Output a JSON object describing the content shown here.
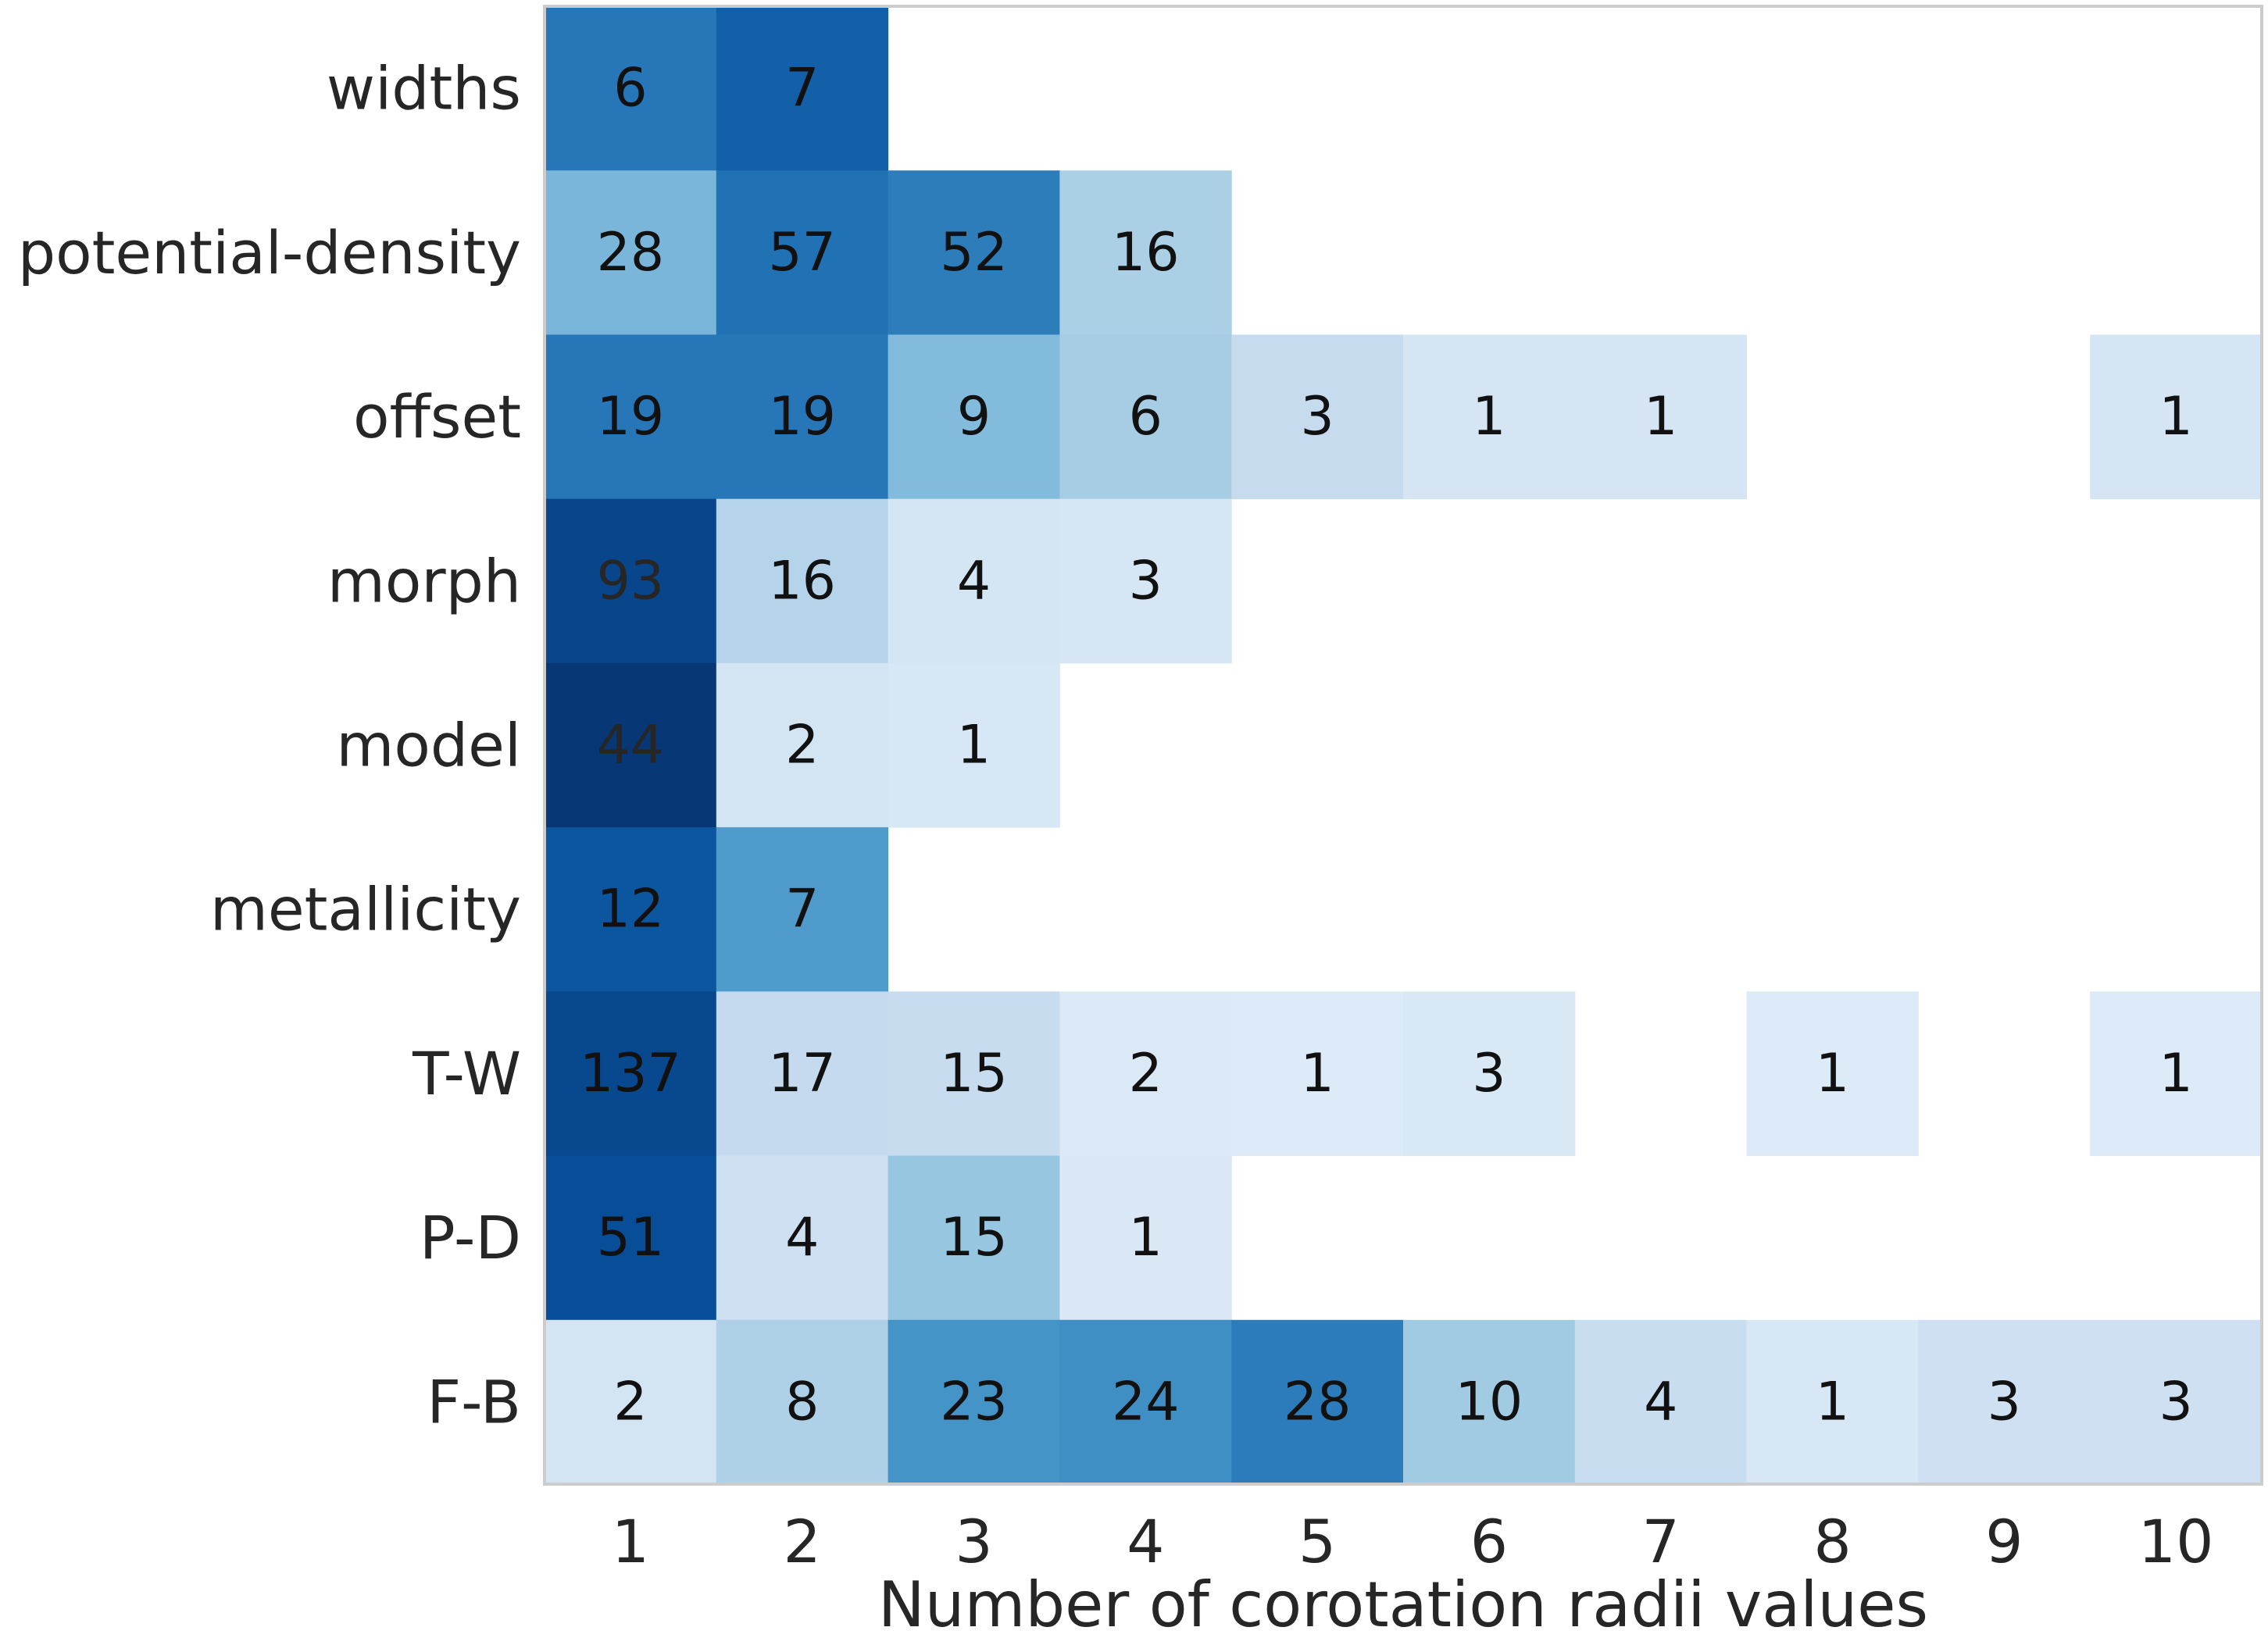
{
  "chart_data": {
    "type": "heatmap",
    "title": "",
    "xlabel": "Number of corotation radii values",
    "ylabel": "",
    "x_categories": [
      1,
      2,
      3,
      4,
      5,
      6,
      7,
      8,
      9,
      10
    ],
    "y_categories": [
      "widths",
      "potential-density",
      "offset",
      "morph",
      "model",
      "metallicity",
      "T-W",
      "P-D",
      "F-B"
    ],
    "values": [
      [
        6,
        7,
        null,
        null,
        null,
        null,
        null,
        null,
        null,
        null
      ],
      [
        28,
        57,
        52,
        16,
        null,
        null,
        null,
        null,
        null,
        null
      ],
      [
        19,
        19,
        9,
        6,
        3,
        1,
        1,
        null,
        null,
        1
      ],
      [
        93,
        16,
        4,
        3,
        null,
        null,
        null,
        null,
        null,
        null
      ],
      [
        44,
        2,
        1,
        null,
        null,
        null,
        null,
        null,
        null,
        null
      ],
      [
        12,
        7,
        null,
        null,
        null,
        null,
        null,
        null,
        null,
        null
      ],
      [
        137,
        17,
        15,
        2,
        1,
        3,
        null,
        1,
        null,
        1
      ],
      [
        51,
        4,
        15,
        1,
        null,
        null,
        null,
        null,
        null,
        null
      ],
      [
        2,
        8,
        23,
        24,
        28,
        10,
        4,
        1,
        3,
        3
      ]
    ],
    "colormap": "Blues",
    "colorscale": "row-normalized",
    "color_low": "#f7fbff",
    "color_high": "#08306b",
    "grid": false
  }
}
